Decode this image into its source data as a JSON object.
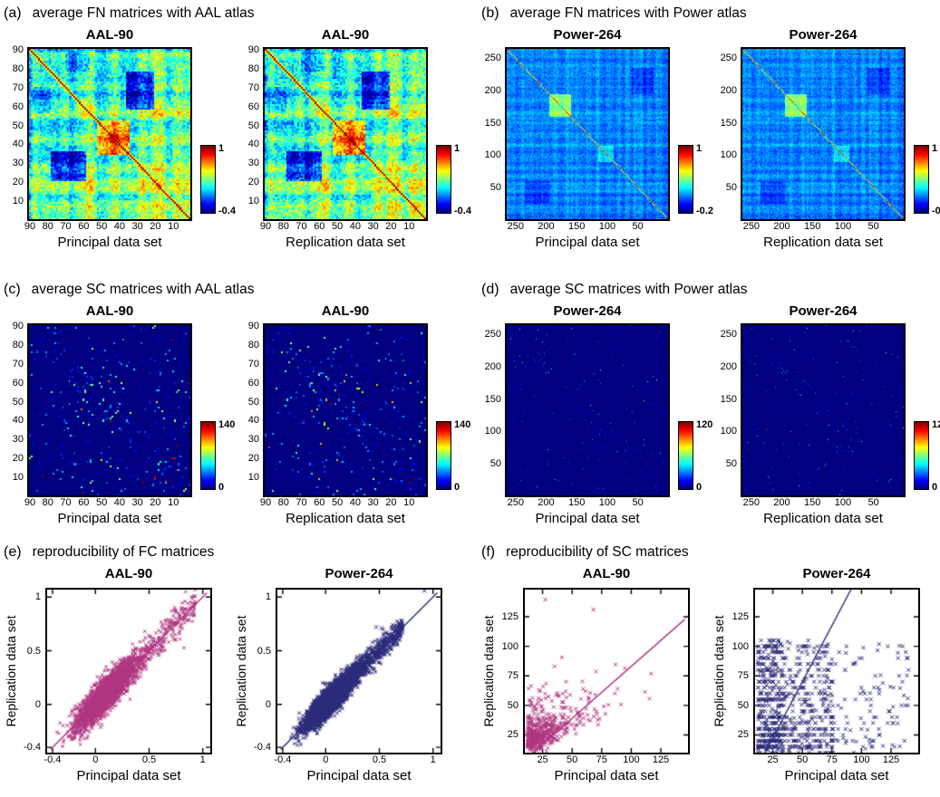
{
  "figure_kind": "multi-panel neuroimaging connectivity figure",
  "chart_data": [
    {
      "panel": "a",
      "label": "(a)",
      "title": "average FN matrices with AAL atlas",
      "type": "heatmap",
      "colormap": "jet",
      "matrix_size": 90,
      "value_range": [
        -0.4,
        1
      ],
      "axis_reversed": true,
      "axis_ticks": [
        {
          "v": 90,
          "l": "90"
        },
        {
          "v": 80,
          "l": "80"
        },
        {
          "v": 70,
          "l": "70"
        },
        {
          "v": 60,
          "l": "60"
        },
        {
          "v": 50,
          "l": "50"
        },
        {
          "v": 40,
          "l": "40"
        },
        {
          "v": 30,
          "l": "30"
        },
        {
          "v": 20,
          "l": "20"
        },
        {
          "v": 10,
          "l": "10"
        }
      ],
      "colorbar": {
        "max": "1",
        "min": "-0.4"
      },
      "subplots": [
        {
          "title": "AAL-90",
          "xlabel": "Principal data set"
        },
        {
          "title": "AAL-90",
          "xlabel": "Replication data set"
        }
      ],
      "features": "functional-network correlation matrix; red main diagonal; hot red module around nodes 35-55; blue anticorrelated off-diagonal bands; mostly cyan-green background",
      "gen": {
        "kind": "fn",
        "base": 0.16,
        "nodeAmp": 0.55,
        "smooth": 2,
        "noise": 0.34,
        "nearDiag": 0.5,
        "diag": 1,
        "blocks": [
          {
            "r0": 38,
            "r1": 56,
            "c0": 38,
            "c1": 56,
            "d": 0.5
          },
          {
            "r0": 54,
            "r1": 70,
            "c0": 12,
            "c1": 32,
            "d": -0.42
          },
          {
            "r0": 20,
            "r1": 34,
            "c0": 2,
            "c1": 12,
            "d": -0.2
          }
        ],
        "seed": 7
      }
    },
    {
      "panel": "b",
      "label": "(b)",
      "title": "average FN matrices with Power atlas",
      "type": "heatmap",
      "colormap": "jet",
      "matrix_size": 264,
      "value_range": [
        -0.2,
        1
      ],
      "axis_reversed": true,
      "axis_ticks": [
        {
          "v": 250,
          "l": "250"
        },
        {
          "v": 200,
          "l": "200"
        },
        {
          "v": 150,
          "l": "150"
        },
        {
          "v": 100,
          "l": "100"
        },
        {
          "v": 50,
          "l": "50"
        }
      ],
      "colorbar": {
        "max": "1",
        "min": "-0.2"
      },
      "subplots": [
        {
          "title": "Power-264",
          "xlabel": "Principal data set"
        },
        {
          "title": "Power-264",
          "xlabel": "Replication data set"
        }
      ],
      "features": "fine-grained cyan-blue correlation matrix; thin orange diagonal; yellow-green module around nodes 160-190",
      "gen": {
        "kind": "fn",
        "base": 0.09,
        "nodeAmp": 0.2,
        "smooth": 3,
        "noise": 0.16,
        "nearDiag": 0.4,
        "diag": 0.92,
        "blocks": [
          {
            "r0": 70,
            "r1": 105,
            "c0": 70,
            "c1": 105,
            "d": 0.3
          },
          {
            "r0": 150,
            "r1": 175,
            "c0": 150,
            "c1": 175,
            "d": 0.12
          },
          {
            "r0": 205,
            "r1": 240,
            "c0": 30,
            "c1": 70,
            "d": -0.08
          }
        ],
        "seed": 11
      }
    },
    {
      "panel": "c",
      "label": "(c)",
      "title": "average SC matrices with AAL atlas",
      "type": "heatmap",
      "colormap": "jet",
      "matrix_size": 90,
      "value_range": [
        0,
        140
      ],
      "axis_reversed": true,
      "axis_ticks": [
        {
          "v": 90,
          "l": "90"
        },
        {
          "v": 80,
          "l": "80"
        },
        {
          "v": 70,
          "l": "70"
        },
        {
          "v": 60,
          "l": "60"
        },
        {
          "v": 50,
          "l": "50"
        },
        {
          "v": 40,
          "l": "40"
        },
        {
          "v": 30,
          "l": "30"
        },
        {
          "v": 20,
          "l": "20"
        },
        {
          "v": 10,
          "l": "10"
        }
      ],
      "colorbar": {
        "max": "140",
        "min": "0"
      },
      "subplots": [
        {
          "title": "AAL-90",
          "xlabel": "Principal data set"
        },
        {
          "title": "AAL-90",
          "xlabel": "Replication data set"
        }
      ],
      "features": "sparse structural connectivity matrix; dark blue background; scattered cyan/yellow/red dots, denser near diagonal",
      "gen": {
        "kind": "sc",
        "p": 0.045,
        "scale": 26,
        "boostP": 0.05,
        "bandP": 0.1,
        "bandW": 9,
        "seed": 21
      }
    },
    {
      "panel": "d",
      "label": "(d)",
      "title": "average SC matrices with Power atlas",
      "type": "heatmap",
      "colormap": "jet",
      "matrix_size": 264,
      "value_range": [
        0,
        120
      ],
      "axis_reversed": true,
      "axis_ticks": [
        {
          "v": 250,
          "l": "250"
        },
        {
          "v": 200,
          "l": "200"
        },
        {
          "v": 150,
          "l": "150"
        },
        {
          "v": 100,
          "l": "100"
        },
        {
          "v": 50,
          "l": "50"
        }
      ],
      "colorbar": {
        "max": "120",
        "min": "0"
      },
      "subplots": [
        {
          "title": "Power-264",
          "xlabel": "Principal data set"
        },
        {
          "title": "Power-264",
          "xlabel": "Replication data set"
        }
      ],
      "features": "very sparse structural connectivity matrix; near-black navy background with faint tiny speckles",
      "gen": {
        "kind": "sc",
        "p": 0.02,
        "scale": 11,
        "boostP": 0.03,
        "bandP": 0.05,
        "bandW": 16,
        "seed": 31
      }
    },
    {
      "panel": "e",
      "label": "(e)",
      "title": "reproducibility of FC matrices",
      "type": "scatter",
      "marker": "x",
      "domain": [
        -0.45,
        1.07
      ],
      "axis_ticks": [
        {
          "v": -0.4,
          "l": "-0.4"
        },
        {
          "v": 0,
          "l": "0"
        },
        {
          "v": 0.5,
          "l": "0.5"
        },
        {
          "v": 1,
          "l": "1"
        }
      ],
      "subplots": [
        {
          "title": "AAL-90",
          "xlabel": "Principal data set",
          "ylabel": "Replication data set",
          "marker_color": "#b03580",
          "fit_line": {
            "slope": 1,
            "intercept": 0
          },
          "gen": {
            "kind": "fc",
            "n": 2600,
            "mu": 0.09,
            "sd": 0.14,
            "tailP": 0.13,
            "tailMax": 0.93,
            "noiseY": 0.075,
            "seed": 41,
            "outliers": [
              [
                0.93,
                1.07
              ]
            ]
          }
        },
        {
          "title": "Power-264",
          "xlabel": "Principal data set",
          "ylabel": "Replication data set",
          "marker_color": "#2b2b7a",
          "fit_line": {
            "slope": 1,
            "intercept": 0
          },
          "gen": {
            "kind": "fc",
            "n": 6500,
            "mu": 0.05,
            "sd": 0.11,
            "tailP": 0.1,
            "tailMax": 0.72,
            "noiseY": 0.055,
            "seed": 43,
            "outliers": [
              [
                0.92,
                1.06
              ],
              [
                0.47,
                0.72
              ],
              [
                0.52,
                0.71
              ]
            ]
          }
        }
      ],
      "features": "dense elongated point clouds along the identity line; principal vs replication FC edge weights, range -0.4 to 1"
    },
    {
      "panel": "f",
      "label": "(f)",
      "title": "reproducibility of SC matrices",
      "type": "scatter",
      "marker": "x",
      "domain": [
        10,
        148
      ],
      "axis_ticks": [
        {
          "v": 25,
          "l": "25"
        },
        {
          "v": 50,
          "l": "50"
        },
        {
          "v": 75,
          "l": "75"
        },
        {
          "v": 100,
          "l": "100"
        },
        {
          "v": 125,
          "l": "125"
        }
      ],
      "subplots": [
        {
          "title": "AAL-90",
          "xlabel": "Principal data set",
          "ylabel": "Replication data set",
          "marker_color": "#b03580",
          "fit_line": {
            "slope": 0.88,
            "intercept": -5
          },
          "gen": {
            "kind": "scx",
            "n": 290,
            "expScale": 17,
            "corr": 0.45,
            "seed": 51,
            "outliers": [
              [
                68,
                131
              ]
            ]
          }
        },
        {
          "title": "Power-264",
          "xlabel": "Principal data set",
          "ylabel": "Replication data set",
          "marker_color": "#2b2b7a",
          "fit_line": {
            "slope": 1.9,
            "intercept": -25
          },
          "gen": {
            "kind": "scx",
            "n": 520,
            "bands": true,
            "seed": 53,
            "outliers": [
              [
                22,
                105
              ],
              [
                26,
                105
              ],
              [
                30,
                105
              ],
              [
                55,
                105
              ]
            ]
          }
        }
      ],
      "features": "sparse streamline-count scatter concentrated at low values (<75) with horizontal banding in Power-264; steep blue fit line"
    }
  ]
}
